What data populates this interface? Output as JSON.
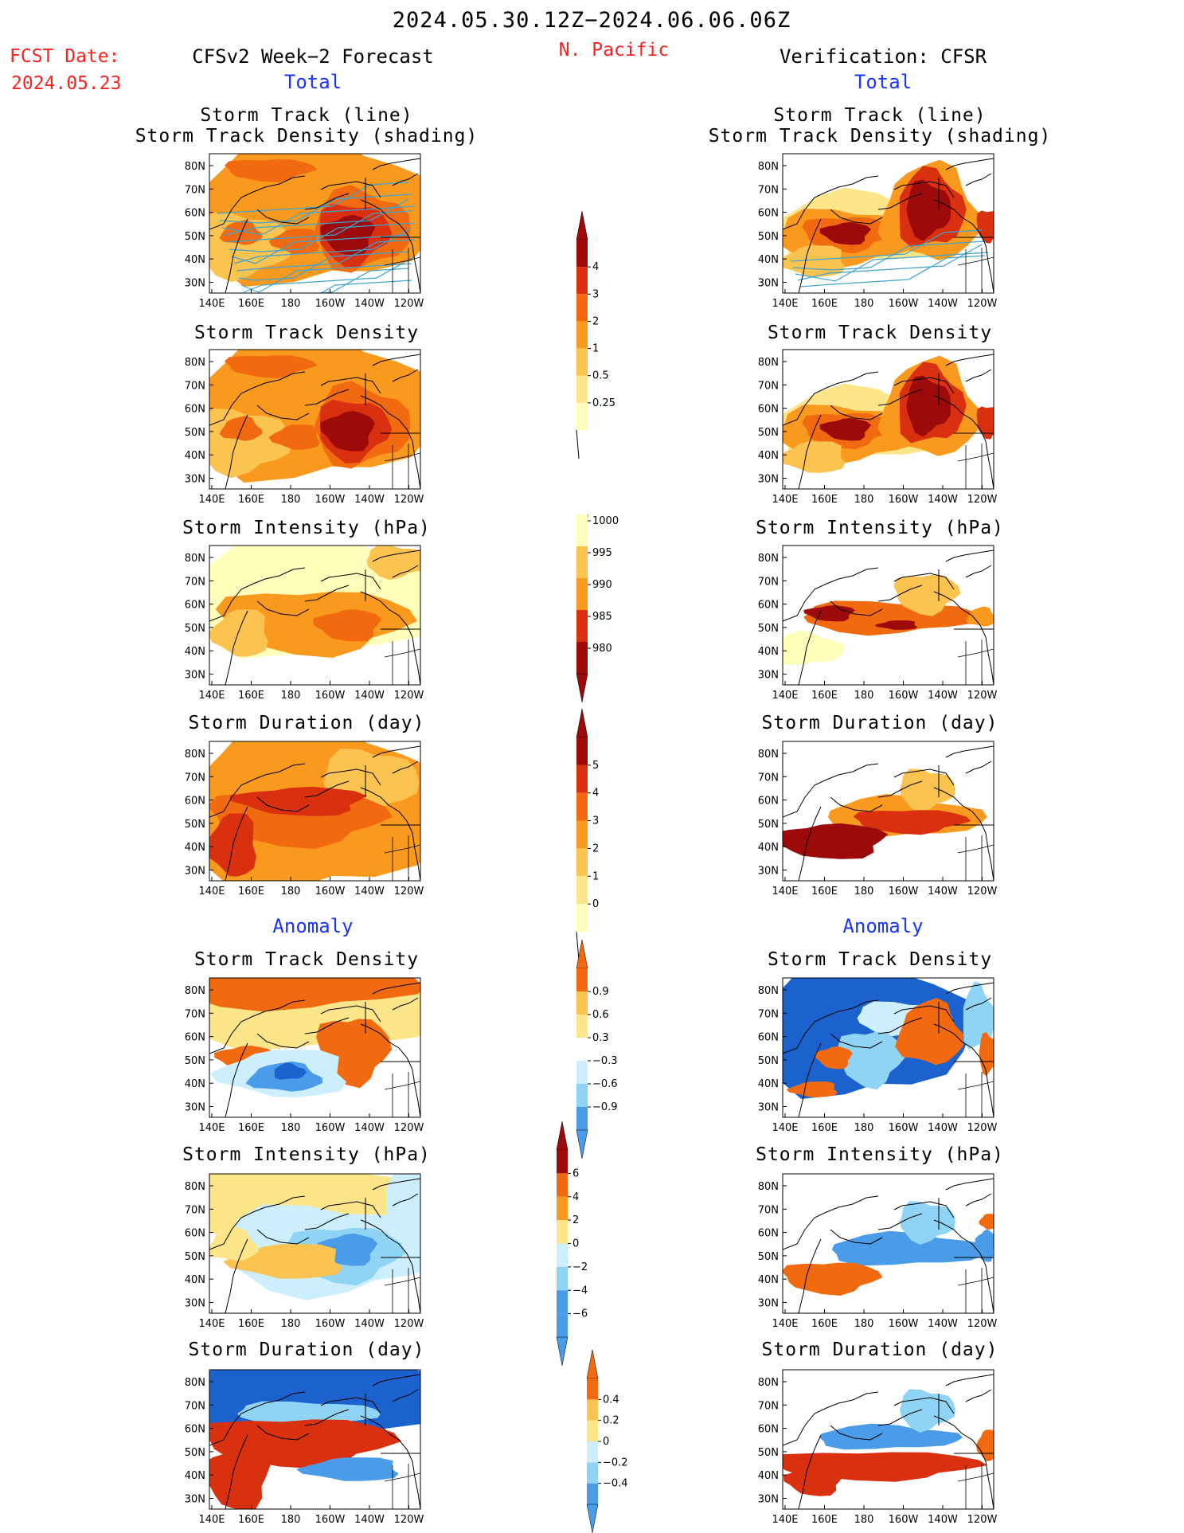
{
  "header": {
    "period": "2024.05.30.12Z−2024.06.06.06Z",
    "region": "N. Pacific",
    "fcst_label": "FCST Date:",
    "fcst_date": "2024.05.23",
    "left_title": "CFSv2 Week−2 Forecast",
    "right_title": "Verification: CFSR",
    "total_label": "Total",
    "anomaly_label": "Anomaly"
  },
  "axes": {
    "x_ticks": [
      "140E",
      "160E",
      "180",
      "160W",
      "140W",
      "120W"
    ],
    "y_ticks": [
      "80N",
      "70N",
      "60N",
      "50N",
      "40N",
      "30N"
    ]
  },
  "panels": {
    "row1_line1": "Storm Track (line)",
    "row1_line2": "Storm Track Density (shading)",
    "density": "Storm Track Density",
    "intensity": "Storm Intensity (hPa)",
    "duration": "Storm Duration (day)"
  },
  "colorbars": {
    "density_total": [
      "4",
      "3",
      "2",
      "1",
      "0.5",
      "0.25"
    ],
    "intensity_total": [
      "1000",
      "995",
      "990",
      "985",
      "980"
    ],
    "duration_total": [
      "5",
      "4",
      "3",
      "2",
      "1",
      "0"
    ],
    "density_anom": [
      "0.9",
      "0.6",
      "0.3",
      "−0.3",
      "−0.6",
      "−0.9"
    ],
    "intensity_anom": [
      "6",
      "4",
      "2",
      "0",
      "−2",
      "−4",
      "−6"
    ],
    "duration_anom": [
      "0.4",
      "0.2",
      "0",
      "−0.2",
      "−0.4"
    ]
  },
  "colors": {
    "warm": [
      "#ffffbb",
      "#fde58a",
      "#fbc450",
      "#f99a1e",
      "#f26a10",
      "#d93010",
      "#9c0a0a"
    ],
    "cool": [
      "#cdeefc",
      "#8fd4f5",
      "#4a9be8",
      "#1c62cf"
    ],
    "track_line": "#3fa3cf",
    "title_red": "#ff2020",
    "title_blue": "#1a33ff"
  }
}
